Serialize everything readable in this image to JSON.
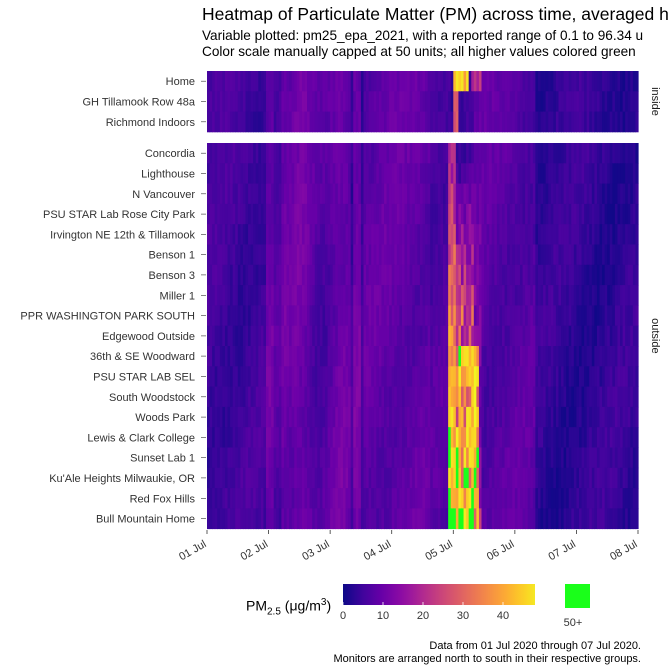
{
  "chart_data": {
    "type": "heatmap",
    "title": "Heatmap of Particulate Matter (PM) across time, averaged h",
    "subtitle_lines": [
      "Variable plotted: pm25_epa_2021, with a reported range of 0.1 to 96.34 u",
      "Color scale manually capped at 50 units; all higher values colored green"
    ],
    "caption_lines": [
      "Data from 01 Jul 2020 through 07 Jul 2020.",
      "Monitors are arranged north to south in their respective groups."
    ],
    "x_tick_labels": [
      "01 Jul",
      "02 Jul",
      "03 Jul",
      "04 Jul",
      "05 Jul",
      "06 Jul",
      "07 Jul",
      "08 Jul"
    ],
    "x_range_days": [
      0,
      7
    ],
    "color_scale": {
      "name": "plasma",
      "min": 0,
      "max": 50,
      "cap": 50,
      "ticks": [
        0,
        10,
        20,
        30,
        40
      ],
      "over_label": "50+",
      "over_color": "#1aff1a",
      "legend_title": "PM",
      "legend_sub": "2.5",
      "legend_unit_open": " (",
      "legend_unit_mu": "μg/m",
      "legend_unit_exp": "3",
      "legend_unit_close": ")"
    },
    "facets": [
      {
        "label": "inside",
        "monitors": [
          "Home",
          "GH Tillamook Row 48a",
          "Richmond Indoors"
        ]
      },
      {
        "label": "outside",
        "monitors": [
          "Concordia",
          "Lighthouse",
          "N Vancouver",
          "PSU STAR Lab Rose City Park",
          "Irvington NE 12th & Tillamook",
          "Benson 1",
          "Benson 3",
          "Miller 1",
          "PPR WASHINGTON PARK SOUTH",
          "Edgewood Outside",
          "36th & SE Woodward",
          "PSU STAR LAB SEL",
          "South Woodstock",
          "Woods Park",
          "Lewis & Clark College",
          "Sunset Lab 1",
          "Ku'Ale Heights Milwaukie, OR",
          "Red Fox Hills",
          "Bull Mountain Home"
        ]
      }
    ]
  }
}
